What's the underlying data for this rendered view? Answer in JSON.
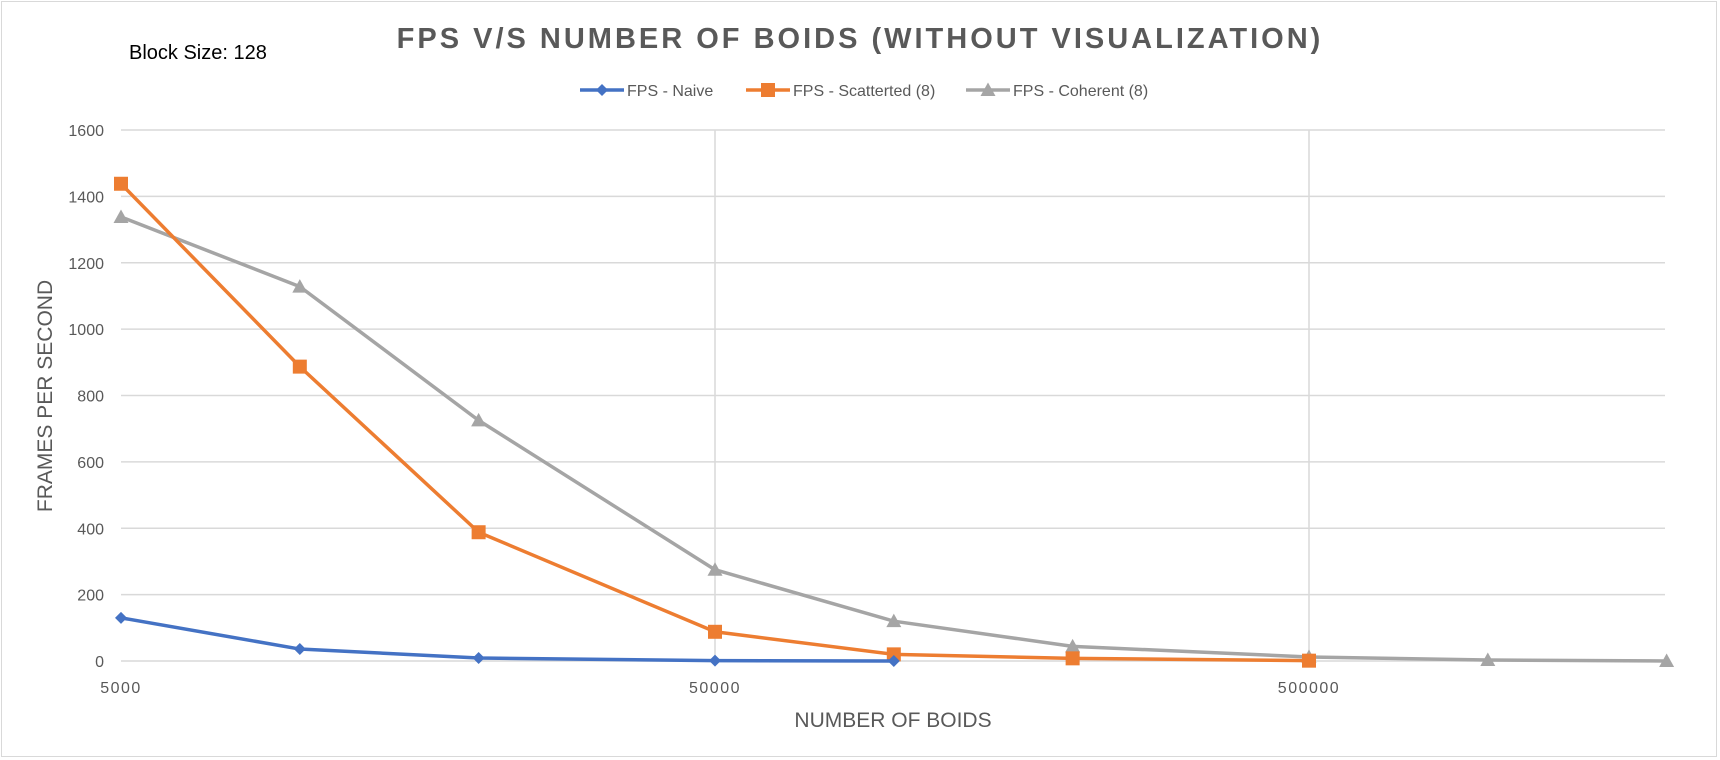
{
  "chart_data": {
    "type": "line",
    "title": "FPS V/S NUMBER OF BOIDS (WITHOUT VISUALIZATION)",
    "annotation": "Block Size: 128",
    "xlabel": "NUMBER OF BOIDS",
    "ylabel": "FRAMES PER SECOND",
    "x_scale": "log",
    "x_tick_labels": [
      "5000",
      "50000",
      "500000"
    ],
    "x_tick_values": [
      5000,
      50000,
      500000
    ],
    "ylim": [
      0,
      1600
    ],
    "y_ticks": [
      0,
      200,
      400,
      600,
      800,
      1000,
      1200,
      1400,
      1600
    ],
    "grid": true,
    "legend_position": "top",
    "series": [
      {
        "name": "FPS - Naive",
        "color": "#4472C4",
        "marker": "diamond",
        "x": [
          5000,
          10000,
          20000,
          50000,
          100000
        ],
        "values": [
          130,
          36,
          9,
          1,
          0
        ]
      },
      {
        "name": "FPS - Scatterted (8)",
        "color": "#ED7D31",
        "marker": "square",
        "x": [
          5000,
          10000,
          20000,
          50000,
          100000,
          200000,
          500000
        ],
        "values": [
          1438,
          887,
          388,
          88,
          20,
          8,
          1
        ]
      },
      {
        "name": "FPS - Coherent (8)",
        "color": "#A5A5A5",
        "marker": "triangle",
        "x": [
          5000,
          10000,
          20000,
          50000,
          100000,
          200000,
          500000,
          1000000,
          2000000
        ],
        "values": [
          1338,
          1128,
          725,
          275,
          120,
          44,
          12,
          3,
          0
        ]
      }
    ]
  }
}
